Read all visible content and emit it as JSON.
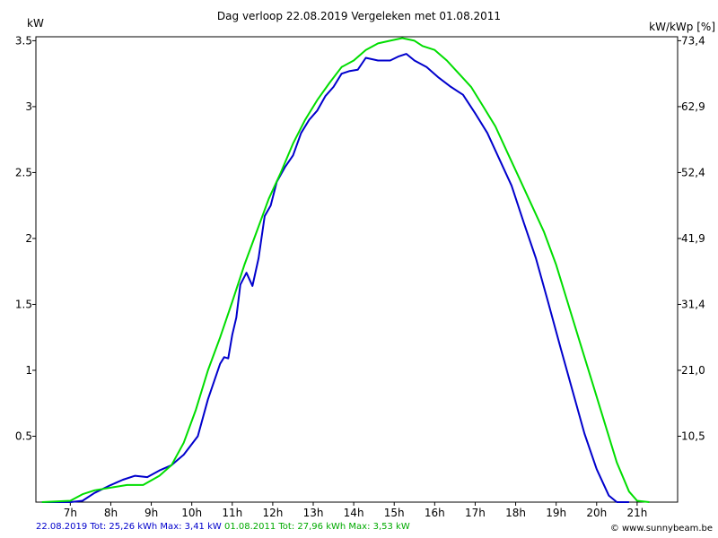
{
  "chart_data": {
    "type": "line",
    "title": "Dag  verloop 22.08.2019   Vergeleken met 01.08.2011",
    "ylabel_left": "kW",
    "ylabel_right": "kW/kWp [%]",
    "ylim": [
      0,
      3.53
    ],
    "xlim": [
      6.15,
      22.0
    ],
    "grid": true,
    "x_ticks": [
      7,
      8,
      9,
      10,
      11,
      12,
      13,
      14,
      15,
      16,
      17,
      18,
      19,
      20,
      21
    ],
    "x_tick_labels": [
      "7h",
      "8h",
      "9h",
      "10h",
      "11h",
      "12h",
      "13h",
      "14h",
      "15h",
      "16h",
      "17h",
      "18h",
      "19h",
      "20h",
      "21h"
    ],
    "y_ticks": [
      0.5,
      1,
      1.5,
      2,
      2.5,
      3,
      3.5
    ],
    "y_tick_labels": [
      "0.5",
      "1",
      "1.5",
      "2",
      "2.5",
      "3",
      "3.5"
    ],
    "y2_ticks": [
      0.5,
      1,
      1.5,
      2,
      2.5,
      3,
      3.5
    ],
    "y2_tick_labels": [
      "10,5",
      "21,0",
      "31,4",
      "41,9",
      "52,4",
      "62,9",
      "73,4"
    ],
    "series": [
      {
        "name": "22.08.2019",
        "color": "#0000cc",
        "points": [
          [
            6.3,
            0
          ],
          [
            7.0,
            0
          ],
          [
            7.3,
            0.01
          ],
          [
            7.6,
            0.07
          ],
          [
            8.0,
            0.13
          ],
          [
            8.3,
            0.17
          ],
          [
            8.6,
            0.2
          ],
          [
            8.9,
            0.19
          ],
          [
            9.2,
            0.24
          ],
          [
            9.5,
            0.28
          ],
          [
            9.8,
            0.36
          ],
          [
            10.15,
            0.5
          ],
          [
            10.4,
            0.78
          ],
          [
            10.7,
            1.05
          ],
          [
            10.8,
            1.1
          ],
          [
            10.9,
            1.09
          ],
          [
            11.0,
            1.27
          ],
          [
            11.1,
            1.4
          ],
          [
            11.2,
            1.65
          ],
          [
            11.35,
            1.74
          ],
          [
            11.5,
            1.64
          ],
          [
            11.65,
            1.85
          ],
          [
            11.8,
            2.17
          ],
          [
            11.95,
            2.25
          ],
          [
            12.1,
            2.43
          ],
          [
            12.3,
            2.54
          ],
          [
            12.5,
            2.63
          ],
          [
            12.7,
            2.8
          ],
          [
            12.9,
            2.9
          ],
          [
            13.1,
            2.97
          ],
          [
            13.3,
            3.08
          ],
          [
            13.5,
            3.15
          ],
          [
            13.7,
            3.25
          ],
          [
            13.9,
            3.27
          ],
          [
            14.1,
            3.28
          ],
          [
            14.3,
            3.37
          ],
          [
            14.6,
            3.35
          ],
          [
            14.9,
            3.35
          ],
          [
            15.1,
            3.38
          ],
          [
            15.3,
            3.4
          ],
          [
            15.5,
            3.35
          ],
          [
            15.8,
            3.3
          ],
          [
            16.1,
            3.22
          ],
          [
            16.4,
            3.15
          ],
          [
            16.7,
            3.09
          ],
          [
            17.0,
            2.95
          ],
          [
            17.3,
            2.8
          ],
          [
            17.6,
            2.6
          ],
          [
            17.9,
            2.4
          ],
          [
            18.2,
            2.12
          ],
          [
            18.5,
            1.85
          ],
          [
            18.8,
            1.52
          ],
          [
            19.1,
            1.18
          ],
          [
            19.4,
            0.85
          ],
          [
            19.7,
            0.52
          ],
          [
            20.0,
            0.25
          ],
          [
            20.3,
            0.05
          ],
          [
            20.5,
            0.0
          ],
          [
            20.8,
            0.0
          ]
        ]
      },
      {
        "name": "01.08.2011",
        "color": "#00dd00",
        "points": [
          [
            6.3,
            0
          ],
          [
            7.0,
            0.01
          ],
          [
            7.3,
            0.06
          ],
          [
            7.6,
            0.09
          ],
          [
            8.0,
            0.11
          ],
          [
            8.4,
            0.13
          ],
          [
            8.8,
            0.13
          ],
          [
            9.2,
            0.2
          ],
          [
            9.5,
            0.28
          ],
          [
            9.8,
            0.45
          ],
          [
            10.1,
            0.7
          ],
          [
            10.4,
            1.0
          ],
          [
            10.7,
            1.25
          ],
          [
            11.0,
            1.52
          ],
          [
            11.3,
            1.8
          ],
          [
            11.6,
            2.05
          ],
          [
            11.9,
            2.3
          ],
          [
            12.2,
            2.5
          ],
          [
            12.5,
            2.72
          ],
          [
            12.8,
            2.9
          ],
          [
            13.1,
            3.05
          ],
          [
            13.4,
            3.18
          ],
          [
            13.7,
            3.3
          ],
          [
            14.0,
            3.35
          ],
          [
            14.3,
            3.43
          ],
          [
            14.6,
            3.48
          ],
          [
            14.9,
            3.5
          ],
          [
            15.2,
            3.52
          ],
          [
            15.5,
            3.5
          ],
          [
            15.7,
            3.46
          ],
          [
            16.0,
            3.43
          ],
          [
            16.3,
            3.35
          ],
          [
            16.6,
            3.25
          ],
          [
            16.9,
            3.15
          ],
          [
            17.2,
            3.0
          ],
          [
            17.5,
            2.85
          ],
          [
            17.8,
            2.65
          ],
          [
            18.1,
            2.45
          ],
          [
            18.4,
            2.25
          ],
          [
            18.7,
            2.05
          ],
          [
            19.0,
            1.8
          ],
          [
            19.3,
            1.5
          ],
          [
            19.6,
            1.2
          ],
          [
            19.9,
            0.9
          ],
          [
            20.2,
            0.6
          ],
          [
            20.5,
            0.3
          ],
          [
            20.8,
            0.08
          ],
          [
            21.0,
            0.01
          ],
          [
            21.3,
            0.0
          ]
        ]
      }
    ]
  },
  "footer": {
    "series1_text": "22.08.2019 Tot: 25,26 kWh Max: 3,41 kW",
    "series2_text": " 01.08.2011 Tot: 27,96 kWh Max: 3,53 kW",
    "credit": "© www.sunnybeam.be"
  }
}
